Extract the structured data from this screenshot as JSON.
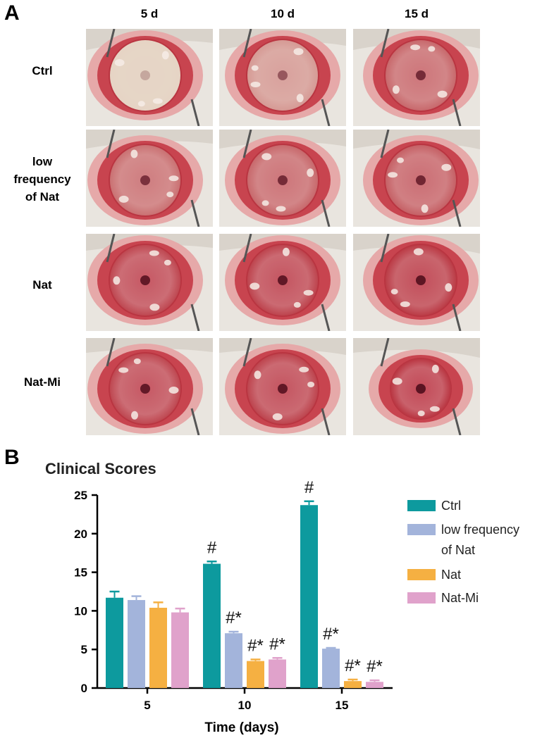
{
  "panel_a": {
    "letter": "A",
    "columns": [
      "5 d",
      "10 d",
      "15 d"
    ],
    "rows": [
      {
        "label_lines": [
          "Ctrl"
        ]
      },
      {
        "label_lines": [
          "low",
          "frequency",
          "of Nat"
        ]
      },
      {
        "label_lines": [
          "Nat"
        ]
      },
      {
        "label_lines": [
          "Nat-Mi"
        ]
      }
    ],
    "colors": {
      "ctrl_opacity": "#e8dccb",
      "eye_red": "#b8323e",
      "tissue_pink": "#e6a9a9",
      "fur": "#e9e5df"
    }
  },
  "panel_b": {
    "letter": "B"
  },
  "chart_data": {
    "type": "bar",
    "title": "Clinical Scores",
    "xlabel": "Time (days)",
    "ylabel": "",
    "ylim": [
      0,
      25
    ],
    "yticks": [
      "0",
      "5",
      "10",
      "15",
      "20",
      "25"
    ],
    "categories": [
      "5",
      "10",
      "15"
    ],
    "series": [
      {
        "name": "Ctrl",
        "color": "#0d9a9e",
        "values": [
          11.7,
          16.1,
          23.7
        ],
        "errors": [
          0.8,
          0.3,
          0.5
        ],
        "annotations": [
          "",
          "#",
          "#"
        ]
      },
      {
        "name": "low frequency of Nat",
        "color": "#a3b4db",
        "values": [
          11.4,
          7.1,
          5.1
        ],
        "errors": [
          0.5,
          0.2,
          0.1
        ],
        "annotations": [
          "",
          "#*",
          "#*"
        ]
      },
      {
        "name": "Nat",
        "color": "#f5b042",
        "values": [
          10.4,
          3.5,
          0.9
        ],
        "errors": [
          0.7,
          0.2,
          0.2
        ],
        "annotations": [
          "",
          "#*",
          "#*"
        ]
      },
      {
        "name": "Nat-Mi",
        "color": "#e0a2cb",
        "values": [
          9.8,
          3.7,
          0.8
        ],
        "errors": [
          0.5,
          0.2,
          0.2
        ],
        "annotations": [
          "",
          "#*",
          "#*"
        ]
      }
    ],
    "legend_lines": [
      [
        "Ctrl"
      ],
      [
        "low frequency",
        "of Nat"
      ],
      [
        "Nat"
      ],
      [
        "Nat-Mi"
      ]
    ],
    "legend_position": "right"
  }
}
